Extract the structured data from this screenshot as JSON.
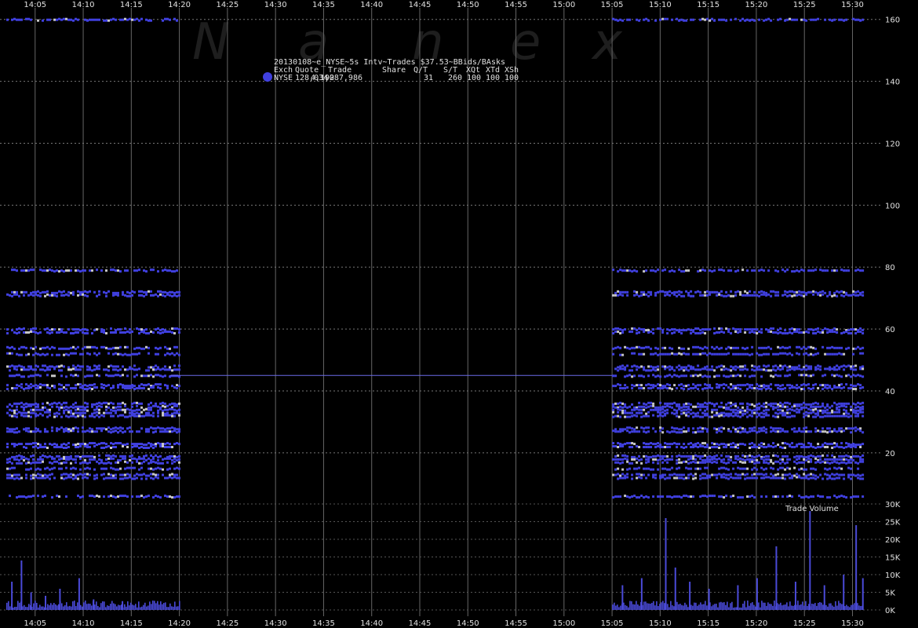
{
  "chart_data": {
    "type": "scatter",
    "title": "20130108~e_NYSE~5s Intv~Trades $37.53~BBids/BAsks",
    "watermark": [
      "N",
      "a",
      "n",
      "e",
      "x"
    ],
    "legend": {
      "header": [
        "Exch",
        "Quote",
        "Trade",
        "Share",
        "Q/T",
        "S/T",
        "XQt",
        "XTd",
        "XSh"
      ],
      "row": [
        "NYSE",
        "128,034",
        "4,192",
        "1,087,986",
        "31",
        "260",
        "100",
        "100",
        "100"
      ]
    },
    "x_ticks": [
      "14:05",
      "14:10",
      "14:15",
      "14:20",
      "14:25",
      "14:30",
      "14:35",
      "14:40",
      "14:45",
      "14:50",
      "14:55",
      "15:00",
      "15:05",
      "15:10",
      "15:15",
      "15:20",
      "15:25",
      "15:30"
    ],
    "x_range": [
      "14:02",
      "15:32"
    ],
    "price_axis": {
      "ticks": [
        20,
        40,
        60,
        80,
        100,
        120,
        140,
        160
      ],
      "ylim": [
        4,
        165
      ]
    },
    "trade_price": 45,
    "trade_gap": [
      "14:19",
      "15:05"
    ],
    "sessions": [
      [
        "14:02",
        "14:20"
      ],
      [
        "15:05",
        "15:31"
      ]
    ],
    "quote_levels": [
      160,
      79,
      72,
      71,
      60,
      59,
      54,
      52,
      48,
      47,
      45,
      42,
      41,
      36,
      35,
      34,
      33,
      32,
      28,
      27,
      23,
      22,
      19,
      18,
      17,
      15,
      13,
      12,
      6
    ],
    "volume_panel": {
      "label": "Trade Volume",
      "ticks": [
        "0K",
        "5K",
        "10K",
        "15K",
        "20K",
        "25K",
        "30K"
      ],
      "tick_values": [
        0,
        5000,
        10000,
        15000,
        20000,
        25000,
        30000
      ],
      "spikes": [
        {
          "t": "14:02.5",
          "v": 8000
        },
        {
          "t": "14:03.5",
          "v": 14000
        },
        {
          "t": "14:04.5",
          "v": 5000
        },
        {
          "t": "14:06",
          "v": 4000
        },
        {
          "t": "14:07.5",
          "v": 6000
        },
        {
          "t": "14:09.5",
          "v": 9000
        },
        {
          "t": "14:11",
          "v": 3000
        },
        {
          "t": "14:14",
          "v": 2500
        },
        {
          "t": "15:06",
          "v": 7000
        },
        {
          "t": "15:08",
          "v": 9000
        },
        {
          "t": "15:10.5",
          "v": 26000
        },
        {
          "t": "15:11.5",
          "v": 12000
        },
        {
          "t": "15:13",
          "v": 8000
        },
        {
          "t": "15:15",
          "v": 6000
        },
        {
          "t": "15:18",
          "v": 7000
        },
        {
          "t": "15:20",
          "v": 9000
        },
        {
          "t": "15:22",
          "v": 18000
        },
        {
          "t": "15:24",
          "v": 8000
        },
        {
          "t": "15:25.5",
          "v": 28000
        },
        {
          "t": "15:27",
          "v": 7000
        },
        {
          "t": "15:29",
          "v": 10000
        },
        {
          "t": "15:30.3",
          "v": 24000
        },
        {
          "t": "15:31",
          "v": 9000
        }
      ]
    }
  },
  "colors": {
    "background": "#000000",
    "bid_ask": "#4040e0",
    "trade": "#c8c8c8",
    "grid": "#666666",
    "volume": "#4a4ad8",
    "trade_line": "#6a6ae8"
  }
}
